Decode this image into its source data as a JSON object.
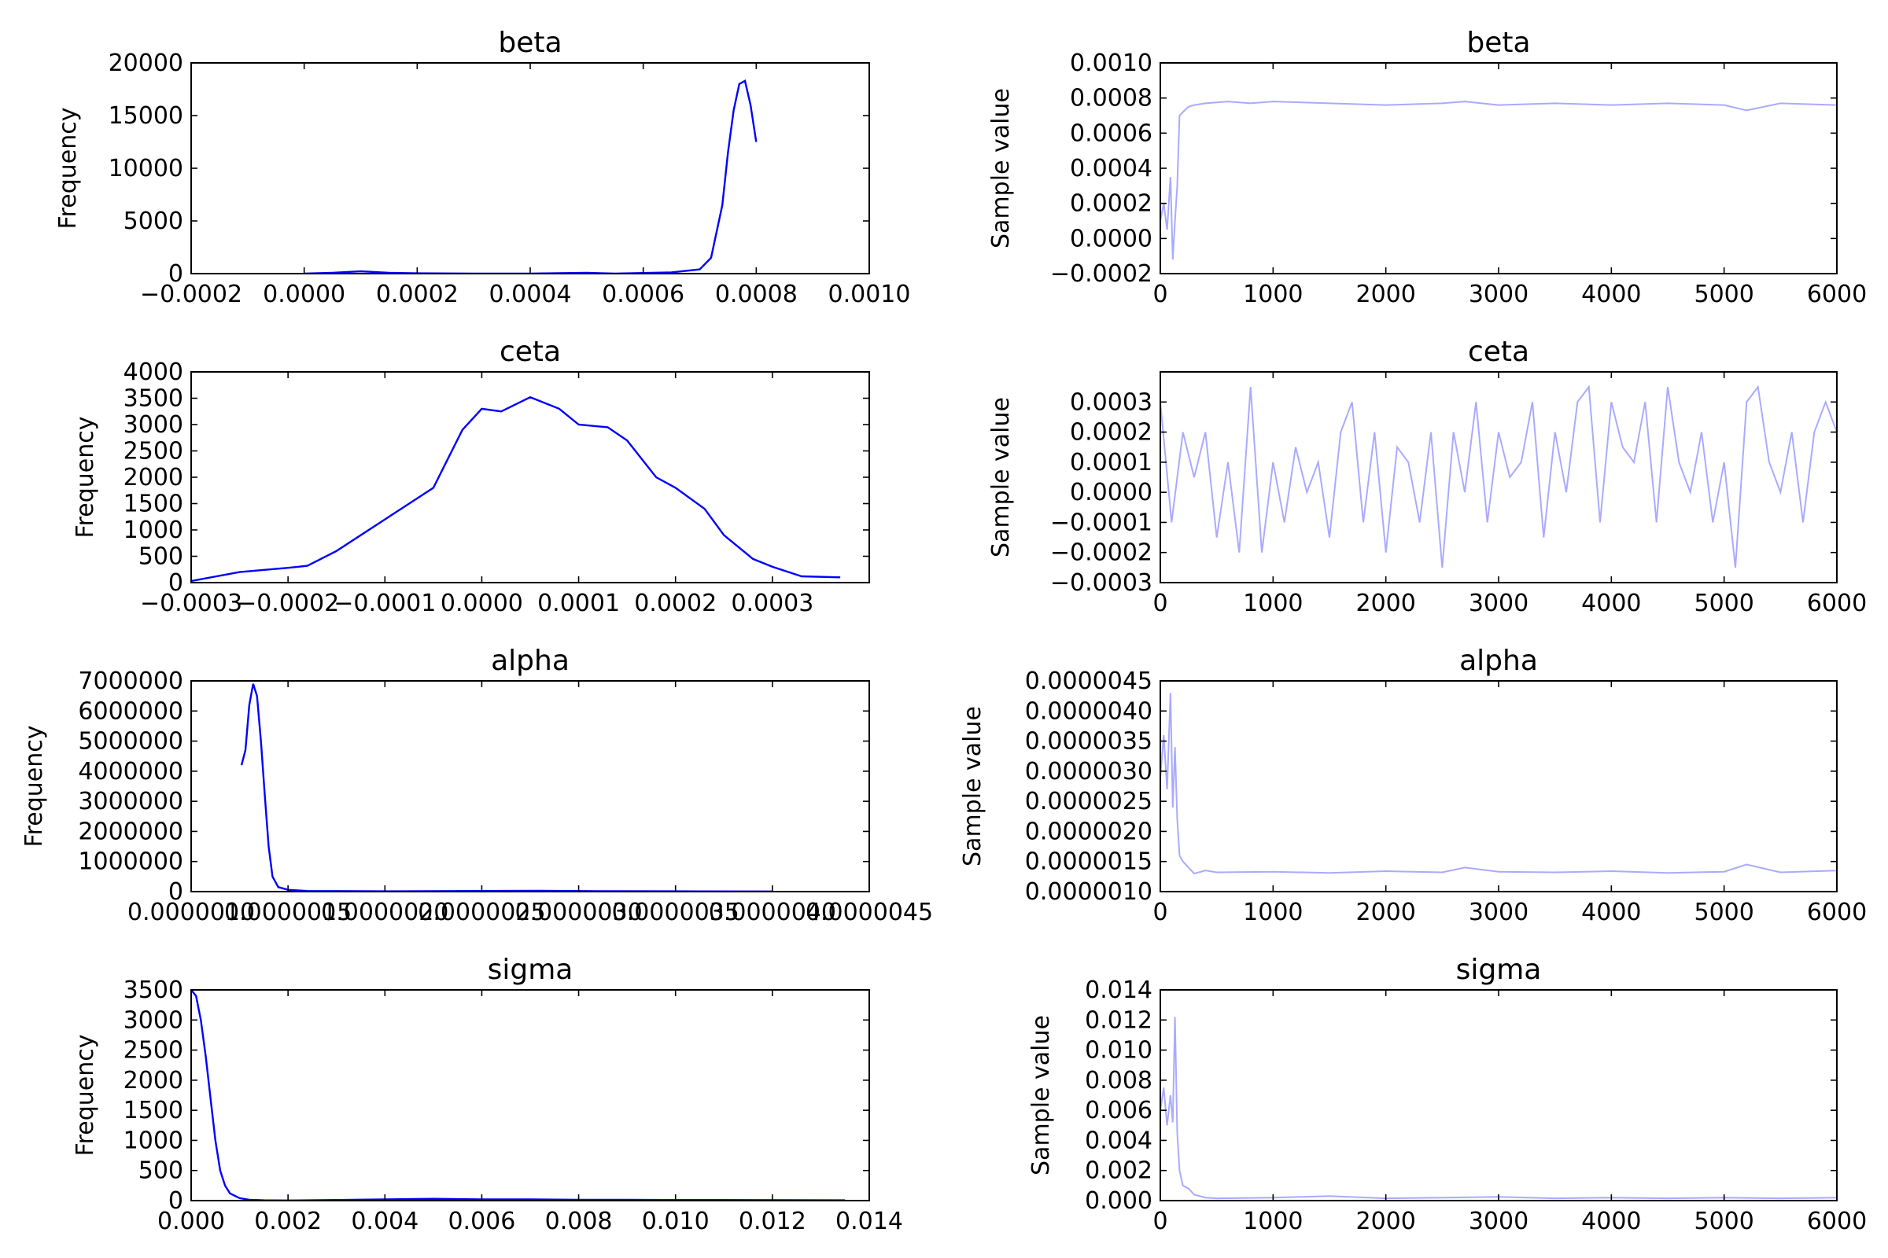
{
  "chart_data": [
    {
      "type": "line",
      "panel": "kde",
      "title": "beta",
      "ylabel": "Frequency",
      "xlim": [
        -0.0002,
        0.001
      ],
      "ylim": [
        0,
        20000
      ],
      "xticks": [
        "−0.0002",
        "0.0000",
        "0.0002",
        "0.0004",
        "0.0006",
        "0.0008",
        "0.0010"
      ],
      "yticks": [
        "0",
        "5000",
        "10000",
        "15000",
        "20000"
      ],
      "color": "#0000ff",
      "x": [
        0.0,
        5e-05,
        0.0001,
        0.00015,
        0.0002,
        0.0003,
        0.0004,
        0.0005,
        0.00055,
        0.00065,
        0.0007,
        0.00072,
        0.00074,
        0.00075,
        0.00076,
        0.00077,
        0.00078,
        0.00079,
        0.0008
      ],
      "y": [
        0,
        80,
        220,
        80,
        30,
        0,
        0,
        80,
        0,
        120,
        400,
        1500,
        6500,
        11500,
        15500,
        18000,
        18300,
        16000,
        12500
      ]
    },
    {
      "type": "line",
      "panel": "trace",
      "title": "beta",
      "ylabel": "Sample value",
      "xlim": [
        0,
        6000
      ],
      "ylim": [
        -0.0002,
        0.001
      ],
      "xticks": [
        "0",
        "1000",
        "2000",
        "3000",
        "4000",
        "5000",
        "6000"
      ],
      "yticks": [
        "−0.0002",
        "0.0000",
        "0.0002",
        "0.0004",
        "0.0006",
        "0.0008",
        "0.0010"
      ],
      "color": "#aaaaff",
      "x": [
        0,
        30,
        60,
        90,
        110,
        130,
        150,
        170,
        200,
        250,
        300,
        400,
        600,
        800,
        1000,
        1500,
        2000,
        2500,
        2700,
        3000,
        3500,
        4000,
        4500,
        5000,
        5200,
        5500,
        6000
      ],
      "y": [
        0.0001,
        0.0002,
        5e-05,
        0.00035,
        -0.00012,
        0.0001,
        0.0003,
        0.0007,
        0.00072,
        0.00075,
        0.00076,
        0.00077,
        0.00078,
        0.00077,
        0.00078,
        0.00077,
        0.00076,
        0.00077,
        0.00078,
        0.00076,
        0.00077,
        0.00076,
        0.00077,
        0.00076,
        0.00073,
        0.00077,
        0.00076
      ]
    },
    {
      "type": "line",
      "panel": "kde",
      "title": "ceta",
      "ylabel": "Frequency",
      "xlim": [
        -0.0003,
        0.0004
      ],
      "ylim": [
        0,
        4000
      ],
      "xticks": [
        "−0.0003",
        "−0.0002",
        "−0.0001",
        "0.0000",
        "0.0001",
        "0.0002",
        "0.0003"
      ],
      "yticks": [
        "0",
        "500",
        "1000",
        "1500",
        "2000",
        "2500",
        "3000",
        "3500",
        "4000"
      ],
      "color": "#0000ff",
      "x": [
        -0.0003,
        -0.00025,
        -0.0002,
        -0.00018,
        -0.00015,
        -0.0001,
        -5e-05,
        -2e-05,
        0.0,
        2e-05,
        5e-05,
        8e-05,
        0.0001,
        0.00013,
        0.00015,
        0.00018,
        0.0002,
        0.00023,
        0.00025,
        0.00028,
        0.0003,
        0.00033,
        0.00037
      ],
      "y": [
        30,
        200,
        280,
        320,
        600,
        1200,
        1800,
        2900,
        3300,
        3250,
        3520,
        3300,
        3000,
        2950,
        2700,
        2000,
        1800,
        1400,
        900,
        450,
        300,
        120,
        100
      ]
    },
    {
      "type": "line",
      "panel": "trace",
      "title": "ceta",
      "ylabel": "Sample value",
      "xlim": [
        0,
        6000
      ],
      "ylim": [
        -0.0003,
        0.0004
      ],
      "xticks": [
        "0",
        "1000",
        "2000",
        "3000",
        "4000",
        "5000",
        "6000"
      ],
      "yticks": [
        "−0.0003",
        "−0.0002",
        "−0.0001",
        "0.0000",
        "0.0001",
        "0.0002",
        "0.0003"
      ],
      "color": "#aaaaff",
      "x": [
        0,
        100,
        200,
        300,
        400,
        500,
        600,
        700,
        800,
        900,
        1000,
        1100,
        1200,
        1300,
        1400,
        1500,
        1600,
        1700,
        1800,
        1900,
        2000,
        2100,
        2200,
        2300,
        2400,
        2500,
        2600,
        2700,
        2800,
        2900,
        3000,
        3100,
        3200,
        3300,
        3400,
        3500,
        3600,
        3700,
        3800,
        3900,
        4000,
        4100,
        4200,
        4300,
        4400,
        4500,
        4600,
        4700,
        4800,
        4900,
        5000,
        5100,
        5200,
        5300,
        5400,
        5500,
        5600,
        5700,
        5800,
        5900,
        6000
      ],
      "y": [
        0.0003,
        -0.0001,
        0.0002,
        5e-05,
        0.0002,
        -0.00015,
        0.0001,
        -0.0002,
        0.00035,
        -0.0002,
        0.0001,
        -0.0001,
        0.00015,
        0.0,
        0.0001,
        -0.00015,
        0.0002,
        0.0003,
        -0.0001,
        0.0002,
        -0.0002,
        0.00015,
        0.0001,
        -0.0001,
        0.0002,
        -0.00025,
        0.0002,
        0.0,
        0.0003,
        -0.0001,
        0.0002,
        5e-05,
        0.0001,
        0.0003,
        -0.00015,
        0.0002,
        0.0,
        0.0003,
        0.00035,
        -0.0001,
        0.0003,
        0.00015,
        0.0001,
        0.0003,
        -0.0001,
        0.00035,
        0.0001,
        0.0,
        0.0002,
        -0.0001,
        0.0001,
        -0.00025,
        0.0003,
        0.00035,
        0.0001,
        0.0,
        0.0002,
        -0.0001,
        0.0002,
        0.0003,
        0.0002
      ]
    },
    {
      "type": "line",
      "panel": "kde",
      "title": "alpha",
      "ylabel": "Frequency",
      "xlim": [
        1e-06,
        4.5e-06
      ],
      "ylim": [
        0,
        7000000
      ],
      "xticks": [
        "0.0000010",
        "0.0000015",
        "0.0000020",
        "0.0000025",
        "0.0000030",
        "0.0000035",
        "0.0000040",
        "0.0000045"
      ],
      "yticks": [
        "0",
        "1000000",
        "2000000",
        "3000000",
        "4000000",
        "5000000",
        "6000000",
        "7000000"
      ],
      "color": "#0000ff",
      "x": [
        1.26e-06,
        1.28e-06,
        1.3e-06,
        1.32e-06,
        1.34e-06,
        1.36e-06,
        1.38e-06,
        1.4e-06,
        1.42e-06,
        1.45e-06,
        1.5e-06,
        1.6e-06,
        2e-06,
        2.5e-06,
        2.8e-06,
        3.1e-06,
        3.5e-06,
        4e-06
      ],
      "y": [
        4200000,
        4700000,
        6200000,
        6900000,
        6500000,
        5000000,
        3200000,
        1500000,
        500000,
        150000,
        60000,
        20000,
        10000,
        20000,
        30000,
        15000,
        10000,
        5000
      ]
    },
    {
      "type": "line",
      "panel": "trace",
      "title": "alpha",
      "ylabel": "Sample value",
      "xlim": [
        0,
        6000
      ],
      "ylim": [
        1e-06,
        4.5e-06
      ],
      "xticks": [
        "0",
        "1000",
        "2000",
        "3000",
        "4000",
        "5000",
        "6000"
      ],
      "yticks": [
        "0.0000010",
        "0.0000015",
        "0.0000020",
        "0.0000025",
        "0.0000030",
        "0.0000035",
        "0.0000040",
        "0.0000045"
      ],
      "color": "#aaaaff",
      "x": [
        0,
        30,
        60,
        90,
        110,
        130,
        150,
        170,
        200,
        250,
        300,
        400,
        500,
        1000,
        1500,
        2000,
        2500,
        2700,
        3000,
        3500,
        4000,
        4500,
        5000,
        5200,
        5500,
        6000
      ],
      "y": [
        2.9e-06,
        3.6e-06,
        2.7e-06,
        4.3e-06,
        2.4e-06,
        3.4e-06,
        2.2e-06,
        1.6e-06,
        1.5e-06,
        1.4e-06,
        1.3e-06,
        1.35e-06,
        1.32e-06,
        1.33e-06,
        1.31e-06,
        1.34e-06,
        1.32e-06,
        1.4e-06,
        1.33e-06,
        1.32e-06,
        1.34e-06,
        1.31e-06,
        1.33e-06,
        1.45e-06,
        1.32e-06,
        1.35e-06
      ]
    },
    {
      "type": "line",
      "panel": "kde",
      "title": "sigma",
      "ylabel": "Frequency",
      "xlim": [
        0,
        0.014
      ],
      "ylim": [
        0,
        3500
      ],
      "xticks": [
        "0.000",
        "0.002",
        "0.004",
        "0.006",
        "0.008",
        "0.010",
        "0.012",
        "0.014"
      ],
      "yticks": [
        "0",
        "500",
        "1000",
        "1500",
        "2000",
        "2500",
        "3000",
        "3500"
      ],
      "color": "#0000ff",
      "x": [
        0.0,
        0.0001,
        0.0002,
        0.0003,
        0.0004,
        0.0005,
        0.0006,
        0.0007,
        0.0008,
        0.001,
        0.0012,
        0.0015,
        0.002,
        0.003,
        0.004,
        0.005,
        0.006,
        0.007,
        0.008,
        0.009,
        0.01,
        0.0135
      ],
      "y": [
        3500,
        3400,
        3000,
        2400,
        1700,
        1000,
        500,
        250,
        120,
        40,
        15,
        5,
        2,
        10,
        20,
        30,
        20,
        20,
        15,
        15,
        10,
        5
      ]
    },
    {
      "type": "line",
      "panel": "trace",
      "title": "sigma",
      "ylabel": "Sample value",
      "xlim": [
        0,
        6000
      ],
      "ylim": [
        0,
        0.014
      ],
      "xticks": [
        "0",
        "1000",
        "2000",
        "3000",
        "4000",
        "5000",
        "6000"
      ],
      "yticks": [
        "0.000",
        "0.002",
        "0.004",
        "0.006",
        "0.008",
        "0.010",
        "0.012",
        "0.014"
      ],
      "color": "#aaaaff",
      "x": [
        0,
        30,
        60,
        90,
        110,
        130,
        150,
        170,
        200,
        250,
        300,
        400,
        500,
        1000,
        1500,
        2000,
        2500,
        3000,
        3500,
        4000,
        4500,
        5000,
        5500,
        6000
      ],
      "y": [
        0.006,
        0.0075,
        0.005,
        0.007,
        0.0052,
        0.0122,
        0.0045,
        0.002,
        0.001,
        0.0008,
        0.0004,
        0.0002,
        0.00015,
        0.0002,
        0.0003,
        0.00015,
        0.0002,
        0.00025,
        0.00015,
        0.0002,
        0.00015,
        0.0002,
        0.00015,
        0.0002
      ]
    }
  ]
}
